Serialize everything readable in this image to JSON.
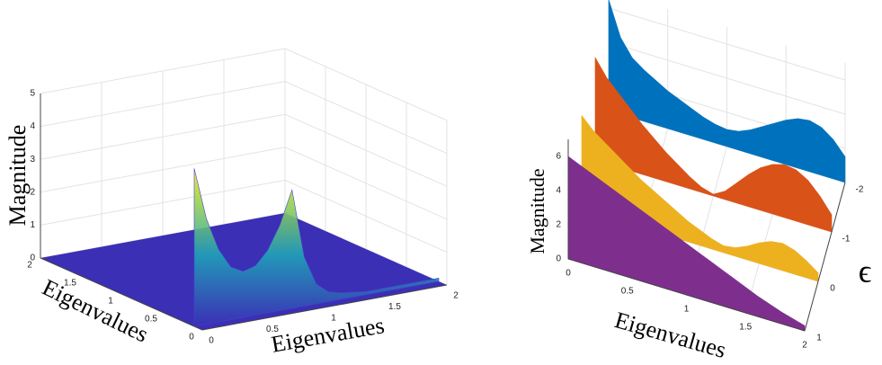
{
  "chart_data": [
    {
      "type": "surface3d",
      "zlabel": "Magnitude",
      "xlabel": "Eigenvalues",
      "ylabel": "Eigenvalues",
      "xlim": [
        0,
        2
      ],
      "xticks": [
        0,
        0.5,
        1,
        1.5,
        2
      ],
      "ylim": [
        0,
        2
      ],
      "yticks": [
        0,
        0.5,
        1,
        1.5,
        2
      ],
      "zlim": [
        0,
        5
      ],
      "zticks": [
        0,
        1,
        2,
        3,
        4,
        5
      ],
      "x": [
        0,
        0.1,
        0.2,
        0.3,
        0.4,
        0.5,
        0.6,
        0.7,
        0.8,
        0.9,
        1,
        1.1,
        1.2,
        1.3,
        1.4,
        1.5,
        1.6,
        1.7,
        1.8,
        1.9,
        2
      ],
      "values": [
        4.8,
        3.2,
        2.2,
        1.6,
        1.4,
        1.5,
        1.9,
        2.6,
        3.6,
        1.5,
        0.6,
        0.3,
        0.2,
        0.15,
        0.1,
        0.1,
        0.1,
        0.1,
        0.1,
        0.1,
        0.1
      ],
      "color": "#3b2fb5"
    },
    {
      "type": "waterfall3d",
      "zlabel": "Magnitude",
      "xlabel": "Eigenvalues",
      "ylabel": "ϵ",
      "xlim": [
        0,
        2
      ],
      "xticks": [
        0,
        0.5,
        1,
        1.5,
        2
      ],
      "ylim": [
        -2,
        1
      ],
      "yticks": [
        -2,
        -1,
        0,
        1
      ],
      "zlim": [
        0,
        7
      ],
      "zticks": [
        0,
        2,
        4,
        6
      ],
      "x": [
        0,
        0.1,
        0.2,
        0.3,
        0.4,
        0.5,
        0.6,
        0.7,
        0.8,
        0.9,
        1,
        1.1,
        1.2,
        1.3,
        1.4,
        1.5,
        1.6,
        1.7,
        1.8,
        1.9,
        2
      ],
      "series": [
        {
          "color": "#0072bd",
          "y": -2,
          "values": [
            6.5,
            4.5,
            3.5,
            3,
            2.6,
            2.2,
            1.9,
            1.6,
            1.3,
            1.1,
            1,
            1.1,
            1.4,
            1.8,
            2.2,
            2.6,
            2.9,
            3,
            2.8,
            2.3,
            1.5
          ]
        },
        {
          "color": "#d95319",
          "y": -1,
          "values": [
            6,
            5,
            4.3,
            3.6,
            2.9,
            2.3,
            1.7,
            1.2,
            0.7,
            0.3,
            0.1,
            0.5,
            1.2,
            1.9,
            2.5,
            2.9,
            3.1,
            3,
            2.6,
            1.9,
            1
          ]
        },
        {
          "color": "#edb120",
          "y": 0,
          "values": [
            5.5,
            4.8,
            4.3,
            3.8,
            3.3,
            2.8,
            2.4,
            2,
            1.6,
            1.2,
            0.9,
            0.6,
            0.4,
            0.5,
            0.8,
            1.2,
            1.5,
            1.6,
            1.4,
            1,
            0.5
          ]
        },
        {
          "color": "#7e2f8e",
          "y": 1,
          "values": [
            6,
            5.7,
            5.4,
            5.1,
            4.8,
            4.5,
            4.2,
            3.9,
            3.6,
            3.3,
            3,
            2.7,
            2.4,
            2.1,
            1.8,
            1.5,
            1.2,
            0.95,
            0.7,
            0.5,
            0.3
          ]
        }
      ]
    }
  ]
}
